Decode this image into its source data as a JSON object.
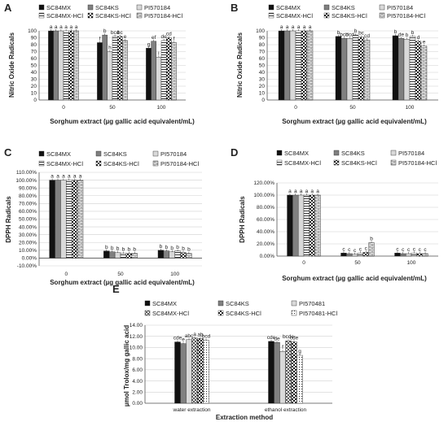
{
  "chart_data": [
    {
      "panel": "A",
      "type": "bar",
      "categories": [
        "0",
        "50",
        "100"
      ],
      "xlabel": "Sorghum extract (µg gallic acid equivalent/mL)",
      "ylabel": "Nitric Oxide Radicals",
      "ylim": [
        0,
        100
      ],
      "yticks": [
        "0",
        "10",
        "20",
        "30",
        "40",
        "50",
        "60",
        "70",
        "80",
        "90",
        "100"
      ],
      "series": [
        {
          "name": "SC84MX",
          "values": [
            100,
            83,
            75
          ],
          "letters": [
            "a",
            "f",
            "g"
          ]
        },
        {
          "name": "SC84KS",
          "values": [
            100,
            94,
            85
          ],
          "letters": [
            "a",
            "b",
            "ef"
          ]
        },
        {
          "name": "PI570184",
          "values": [
            100,
            70,
            62
          ],
          "letters": [
            "a",
            "h",
            "i"
          ]
        },
        {
          "name": "SC84MX-HCl",
          "values": [
            100,
            92,
            86
          ],
          "letters": [
            "a",
            "bcd",
            "de"
          ]
        },
        {
          "name": "SC84KS-HCl",
          "values": [
            100,
            92,
            90
          ],
          "letters": [
            "a",
            "bc",
            "cd"
          ]
        },
        {
          "name": "PI570184-HCl",
          "values": [
            100,
            86,
            83
          ],
          "letters": [
            "a",
            "e",
            "f"
          ]
        }
      ]
    },
    {
      "panel": "B",
      "type": "bar",
      "categories": [
        "0",
        "50",
        "100"
      ],
      "xlabel": "Sorghum extract (µg gallic acid equivalent/mL)",
      "ylabel": "Nitric Oxide Radicals",
      "ylim": [
        0,
        100
      ],
      "yticks": [
        "0",
        "10",
        "20",
        "30",
        "40",
        "50",
        "60",
        "70",
        "80",
        "90",
        "100"
      ],
      "series": [
        {
          "name": "SC84MX",
          "values": [
            100,
            92,
            93
          ],
          "letters": [
            "a",
            "b",
            "b"
          ]
        },
        {
          "name": "SC84KS",
          "values": [
            100,
            89,
            89
          ],
          "letters": [
            "a",
            "bcd",
            "de"
          ]
        },
        {
          "name": "PI570184",
          "values": [
            100,
            89,
            88
          ],
          "letters": [
            "a",
            "bcd",
            "b"
          ]
        },
        {
          "name": "SC84MX-HCl",
          "values": [
            100,
            94,
            92
          ],
          "letters": [
            "a",
            "b",
            "b"
          ]
        },
        {
          "name": "SC84KS-HCl",
          "values": [
            100,
            91,
            85
          ],
          "letters": [
            "a",
            "bc",
            "d"
          ]
        },
        {
          "name": "PI570184-HCl",
          "values": [
            100,
            87,
            78
          ],
          "letters": [
            "a",
            "cd",
            "e"
          ]
        }
      ]
    },
    {
      "panel": "C",
      "type": "bar",
      "categories": [
        "0",
        "50",
        "100"
      ],
      "xlabel": "Sorghum extract (µg gallic acid equivalent/mL)",
      "ylabel": "DPPH Radicals",
      "ylim": [
        -10,
        110
      ],
      "yticks": [
        "-10.00%",
        "0.00%",
        "10.00%",
        "20.00%",
        "30.00%",
        "40.00%",
        "50.00%",
        "60.00%",
        "70.00%",
        "80.00%",
        "90.00%",
        "100.00%",
        "110.00%"
      ],
      "series": [
        {
          "name": "SC84MX",
          "values": [
            100,
            9,
            10
          ],
          "letters": [
            "a",
            "b",
            "b"
          ]
        },
        {
          "name": "SC84KS",
          "values": [
            100,
            8,
            9
          ],
          "letters": [
            "a",
            "b",
            "b"
          ]
        },
        {
          "name": "PI570184",
          "values": [
            100,
            7,
            8
          ],
          "letters": [
            "a",
            "b",
            "b"
          ]
        },
        {
          "name": "SC84MX-HCl",
          "values": [
            100,
            6,
            9
          ],
          "letters": [
            "a",
            "b",
            "b"
          ]
        },
        {
          "name": "SC84KS-HCl",
          "values": [
            100,
            6,
            7
          ],
          "letters": [
            "a",
            "b",
            "b"
          ]
        },
        {
          "name": "PI570184-HCl",
          "values": [
            100,
            6,
            6
          ],
          "letters": [
            "a",
            "b",
            "b"
          ]
        }
      ]
    },
    {
      "panel": "D",
      "type": "bar",
      "categories": [
        "0",
        "50",
        "100"
      ],
      "xlabel": "Sorghum extract (µg gallic acid equivalent/mL)",
      "ylabel": "DPPH Radicals",
      "ylim": [
        0,
        120
      ],
      "yticks": [
        "0.00%",
        "20.00%",
        "40.00%",
        "60.00%",
        "80.00%",
        "100.00%",
        "120.00%"
      ],
      "series": [
        {
          "name": "SC84MX",
          "values": [
            100,
            5,
            5
          ],
          "letters": [
            "a",
            "c",
            "c"
          ]
        },
        {
          "name": "SC84KS",
          "values": [
            100,
            4,
            4
          ],
          "letters": [
            "a",
            "c",
            "c"
          ]
        },
        {
          "name": "PI570184",
          "values": [
            100,
            3,
            4
          ],
          "letters": [
            "a",
            "c",
            "c"
          ]
        },
        {
          "name": "SC84MX-HCl",
          "values": [
            100,
            5,
            5
          ],
          "letters": [
            "a",
            "c",
            "c"
          ]
        },
        {
          "name": "SC84KS-HCl",
          "values": [
            100,
            6,
            4
          ],
          "letters": [
            "a",
            "c",
            "c"
          ]
        },
        {
          "name": "PI570184-HCl",
          "values": [
            100,
            22,
            4
          ],
          "letters": [
            "a",
            "b",
            "c"
          ]
        }
      ]
    },
    {
      "panel": "E",
      "type": "bar",
      "categories": [
        "water extraction",
        "ethanol extraction"
      ],
      "xlabel": "Extraction method",
      "ylabel": "µmol Trolox/mg gallic acid",
      "ylim": [
        0,
        14
      ],
      "yticks": [
        "0.00",
        "2.00",
        "4.00",
        "6.00",
        "8.00",
        "10.00",
        "12.00",
        "14.00"
      ],
      "series": [
        {
          "name": "SC84MX",
          "values": [
            11.0,
            11.1
          ],
          "letters": [
            "cde",
            "cde"
          ]
        },
        {
          "name": "SC84KS",
          "values": [
            10.7,
            10.9
          ],
          "letters": [
            "e",
            "de"
          ]
        },
        {
          "name": "PI570481",
          "values": [
            11.4,
            9.3
          ],
          "letters": [
            "abc",
            "f"
          ]
        },
        {
          "name": "SC84MX-HCl",
          "values": [
            11.7,
            11.2
          ],
          "letters": [
            "a",
            "bcde"
          ]
        },
        {
          "name": "SC84KS-HCl",
          "values": [
            11.6,
            11.0
          ],
          "letters": [
            "ab",
            "cde"
          ]
        },
        {
          "name": "PI570481-HCl",
          "values": [
            11.3,
            8.6
          ],
          "letters": [
            "bcd",
            "g"
          ]
        }
      ]
    }
  ],
  "series_styles": [
    {
      "fill": "#111111",
      "pattern": "solid"
    },
    {
      "fill": "#808080",
      "pattern": "solid"
    },
    {
      "fill": "#d9d9d9",
      "pattern": "solid"
    },
    {
      "fill": "#ffffff",
      "pattern": "hlines"
    },
    {
      "fill": "#ffffff",
      "pattern": "checker"
    },
    {
      "fill": "#ffffff",
      "pattern": "brick"
    }
  ],
  "series_styles_E": [
    {
      "fill": "#111111",
      "pattern": "solid"
    },
    {
      "fill": "#808080",
      "pattern": "solid"
    },
    {
      "fill": "#d9d9d9",
      "pattern": "solid"
    },
    {
      "fill": "#ffffff",
      "pattern": "crosshatch"
    },
    {
      "fill": "#ffffff",
      "pattern": "checker"
    },
    {
      "fill": "#ffffff",
      "pattern": "dots"
    }
  ]
}
